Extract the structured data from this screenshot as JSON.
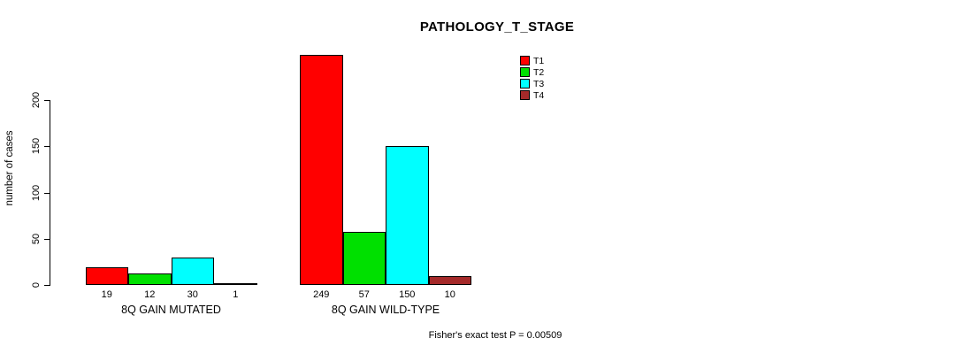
{
  "chart_data": {
    "type": "bar",
    "title": "PATHOLOGY_T_STAGE",
    "ylabel": "number of cases",
    "xlabel": "",
    "ylim": [
      0,
      200
    ],
    "yticks": [
      0,
      50,
      100,
      150,
      200
    ],
    "grid": false,
    "legend_position": "top-right",
    "series": [
      "T1",
      "T2",
      "T3",
      "T4"
    ],
    "colors": [
      "#FF0000",
      "#00E000",
      "#00FFFF",
      "#A52A2A"
    ],
    "categories": [
      "8Q GAIN MUTATED",
      "8Q GAIN WILD-TYPE"
    ],
    "groups": [
      {
        "label": "8Q GAIN MUTATED",
        "values": [
          19,
          12,
          30,
          1
        ]
      },
      {
        "label": "8Q GAIN WILD-TYPE",
        "values": [
          249,
          57,
          150,
          10
        ]
      }
    ],
    "annotation": "Fisher's exact test P = 0.00509"
  }
}
